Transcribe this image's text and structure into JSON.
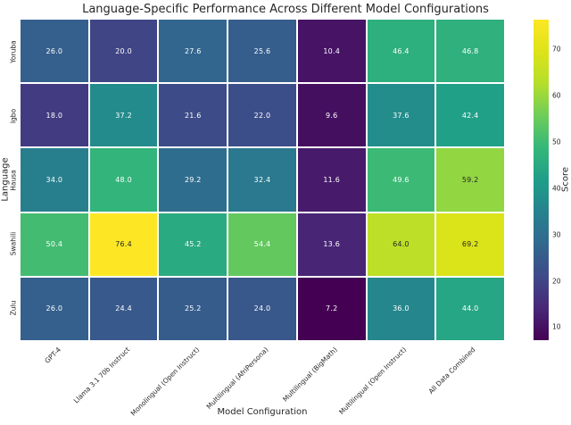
{
  "chart_data": {
    "type": "heatmap",
    "title": "Language-Specific Performance Across Different Model Configurations",
    "xlabel": "Model Configuration",
    "ylabel": "Language",
    "colorbar_label": "Score",
    "colormap": "viridis",
    "vmin": 7.2,
    "vmax": 76.4,
    "colorbar_ticks": [
      10,
      20,
      30,
      40,
      50,
      60,
      70
    ],
    "columns": [
      "GPT-4",
      "Llama 3.1 70b Instruct",
      "Monolingual (Open Instruct)",
      "Multilingual (AfriPersona)",
      "Multilingual (BigMath)",
      "Multilingual (Open Instruct)",
      "All Data Combined"
    ],
    "rows": [
      "Yoruba",
      "Igbo",
      "Hausa",
      "Swahili",
      "Zulu"
    ],
    "values": [
      [
        26.0,
        20.0,
        27.6,
        25.6,
        10.4,
        46.4,
        46.8
      ],
      [
        18.0,
        37.2,
        21.6,
        22.0,
        9.6,
        37.6,
        42.4
      ],
      [
        34.0,
        48.0,
        29.2,
        32.4,
        11.6,
        49.6,
        59.2
      ],
      [
        50.4,
        76.4,
        45.2,
        54.4,
        13.6,
        64.0,
        69.2
      ],
      [
        26.0,
        24.4,
        25.2,
        24.0,
        7.2,
        36.0,
        44.0
      ]
    ],
    "annotation_decimals": 1,
    "grid_on": false,
    "legend_position": "right-colorbar"
  },
  "colors": {
    "background": "#ffffff",
    "text": "#262626",
    "annotation_light": "#ffffff",
    "annotation_dark": "#262626",
    "gridline": "#ffffff",
    "viridis_stops": [
      "#440154",
      "#482878",
      "#3e4a89",
      "#31688e",
      "#26828e",
      "#1f9e89",
      "#35b779",
      "#6dcd59",
      "#b4de2c",
      "#dde318",
      "#fde725"
    ]
  }
}
